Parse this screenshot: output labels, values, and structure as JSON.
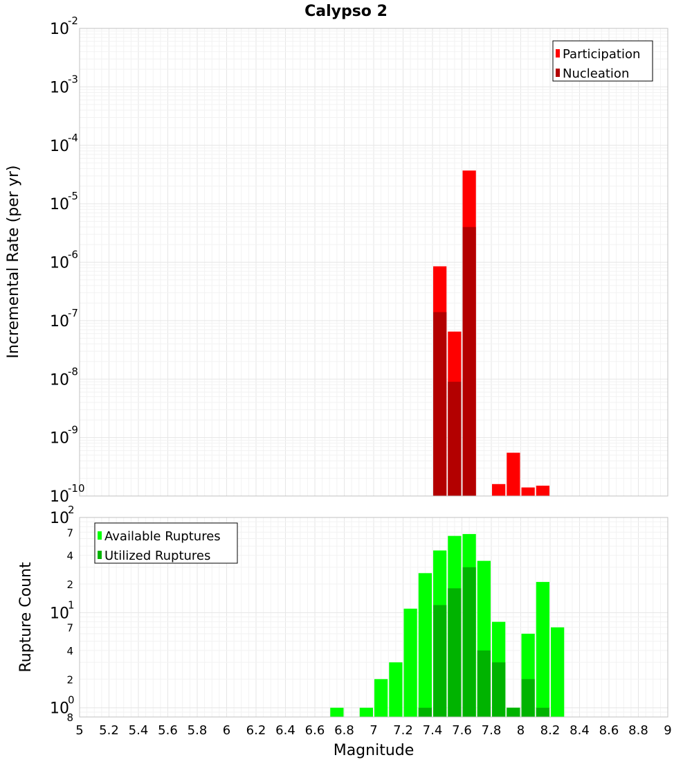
{
  "colors": {
    "participation": "#ff0000",
    "nucleation": "#b30000",
    "available": "#00ff00",
    "utilized": "#00b300",
    "grid_major": "#e6e6e6",
    "grid_minor": "#f2f2f2",
    "frame": "#c0c0c0"
  },
  "chart_data": [
    {
      "type": "bar",
      "title": "Calypso 2",
      "xlabel": "Magnitude",
      "ylabel": "Incremental Rate (per yr)",
      "yscale": "log",
      "ylim": [
        1e-10,
        0.01
      ],
      "xlim": [
        5,
        9
      ],
      "bin_width": 0.1,
      "y_ticks": [
        {
          "base": "10",
          "exp": "-10",
          "value": 1e-10
        },
        {
          "base": "10",
          "exp": "-9",
          "value": 1e-09
        },
        {
          "base": "10",
          "exp": "-8",
          "value": 1e-08
        },
        {
          "base": "10",
          "exp": "-7",
          "value": 1e-07
        },
        {
          "base": "10",
          "exp": "-6",
          "value": 1e-06
        },
        {
          "base": "10",
          "exp": "-5",
          "value": 1e-05
        },
        {
          "base": "10",
          "exp": "-4",
          "value": 0.0001
        },
        {
          "base": "10",
          "exp": "-3",
          "value": 0.001
        },
        {
          "base": "10",
          "exp": "-2",
          "value": 0.01
        }
      ],
      "legend": [
        "Participation",
        "Nucleation"
      ],
      "legend_position": "top-right",
      "series": [
        {
          "name": "Participation",
          "color_key": "participation",
          "x": [
            7.45,
            7.55,
            7.65,
            7.85,
            7.95,
            8.05,
            8.15
          ],
          "values": [
            8.5e-07,
            6.5e-08,
            3.7e-05,
            1.6e-10,
            5.5e-10,
            1.4e-10,
            1.5e-10
          ]
        },
        {
          "name": "Nucleation",
          "color_key": "nucleation",
          "x": [
            7.45,
            7.55,
            7.65
          ],
          "values": [
            1.4e-07,
            9e-09,
            4e-06
          ]
        }
      ]
    },
    {
      "type": "bar",
      "xlabel": "Magnitude",
      "ylabel": "Rupture Count",
      "yscale": "log",
      "ylim": [
        0.8,
        100
      ],
      "xlim": [
        5,
        9
      ],
      "bin_width": 0.1,
      "y_ticks": [
        {
          "base": "10",
          "exp": "0",
          "value": 1
        },
        {
          "base": "10",
          "exp": "1",
          "value": 10
        },
        {
          "base": "10",
          "exp": "2",
          "value": 100
        }
      ],
      "y_minor_labels": [
        {
          "label": "8",
          "value": 0.8
        },
        {
          "label": "2",
          "value": 2
        },
        {
          "label": "4",
          "value": 4
        },
        {
          "label": "7",
          "value": 7
        },
        {
          "label": "2",
          "value": 20
        },
        {
          "label": "4",
          "value": 40
        },
        {
          "label": "7",
          "value": 70
        }
      ],
      "x_ticks": [
        "5",
        "5.2",
        "5.4",
        "5.6",
        "5.8",
        "6",
        "6.2",
        "6.4",
        "6.6",
        "6.8",
        "7",
        "7.2",
        "7.4",
        "7.6",
        "7.8",
        "8",
        "8.2",
        "8.4",
        "8.6",
        "8.8",
        "9"
      ],
      "legend": [
        "Available Ruptures",
        "Utilized Ruptures"
      ],
      "legend_position": "top-left",
      "series": [
        {
          "name": "Available Ruptures",
          "color_key": "available",
          "x": [
            6.75,
            6.95,
            7.05,
            7.15,
            7.25,
            7.35,
            7.45,
            7.55,
            7.65,
            7.75,
            7.85,
            7.95,
            8.05,
            8.15,
            8.25
          ],
          "values": [
            1,
            1,
            2,
            3,
            11,
            26,
            45,
            64,
            67,
            35,
            8,
            1,
            6,
            21,
            7
          ]
        },
        {
          "name": "Utilized Ruptures",
          "color_key": "utilized",
          "x": [
            7.35,
            7.45,
            7.55,
            7.65,
            7.75,
            7.85,
            7.95,
            8.05,
            8.15
          ],
          "values": [
            1,
            12,
            18,
            30,
            4,
            3,
            1,
            2,
            1
          ]
        }
      ]
    }
  ]
}
